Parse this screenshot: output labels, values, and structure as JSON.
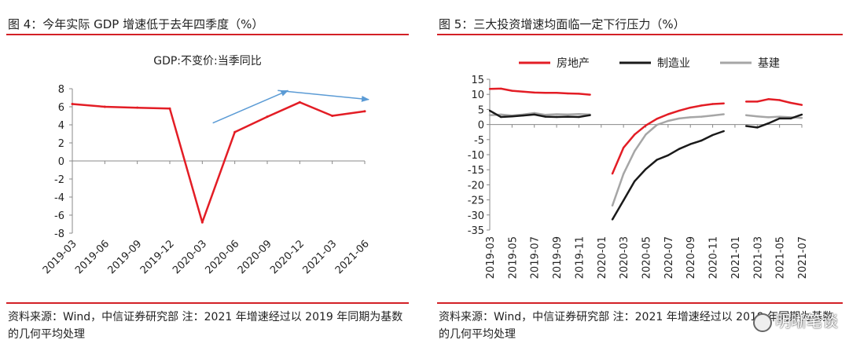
{
  "left": {
    "title": "图 4：今年实际 GDP 增速低于去年四季度（%）",
    "source": "资料来源：Wind，中信证券研究部 注：2021 年增速经过以 2019 年同期为基数的几何平均处理"
  },
  "right": {
    "title": "图 5：三大投资增速均面临一定下行压力（%）",
    "source": "资料来源：Wind，中信证券研究部 注：2021 年增速经过以 2019 年同期为基数的几何平均处理",
    "watermark": "明晰笔谈"
  },
  "colors": {
    "red": "#e31d25",
    "black": "#1a1a1a",
    "gray": "#a6a6a6",
    "arrow": "#5b9bd5",
    "rule": "#d32026"
  },
  "chart_data": [
    {
      "type": "line",
      "title": "GDP:不变价:当季同比",
      "x": [
        "2019-03",
        "2019-06",
        "2019-09",
        "2019-12",
        "2020-03",
        "2020-06",
        "2020-09",
        "2020-12",
        "2021-03",
        "2021-06"
      ],
      "series": [
        {
          "name": "GDP:不变价:当季同比",
          "color": "#e31d25",
          "values": [
            6.3,
            6.0,
            5.9,
            5.8,
            -6.8,
            3.2,
            4.9,
            6.5,
            5.0,
            5.5
          ]
        }
      ],
      "ylim": [
        -8,
        8
      ],
      "yticks": [
        8,
        6,
        4,
        2,
        0,
        -2,
        -4,
        -6,
        -8
      ],
      "grid": false,
      "annotations": [
        {
          "type": "arrow",
          "from": {
            "x": "2020-06",
            "y": 4.2
          },
          "to": {
            "x": "2020-12",
            "y": 7.8
          }
        },
        {
          "type": "arrow",
          "from": {
            "x": "2020-12",
            "y": 7.8
          },
          "to": {
            "x": "2021-06",
            "y": 6.8
          }
        }
      ]
    },
    {
      "type": "line",
      "x": [
        "2019-03",
        "2019-04",
        "2019-05",
        "2019-06",
        "2019-07",
        "2019-08",
        "2019-09",
        "2019-10",
        "2019-11",
        "2019-12",
        "2020-01",
        "2020-02",
        "2020-03",
        "2020-04",
        "2020-05",
        "2020-06",
        "2020-07",
        "2020-08",
        "2020-09",
        "2020-10",
        "2020-11",
        "2020-12",
        "2021-01",
        "2021-02",
        "2021-03",
        "2021-04",
        "2021-05",
        "2021-06",
        "2021-07"
      ],
      "xticks": [
        "2019-03",
        "2019-05",
        "2019-07",
        "2019-09",
        "2019-11",
        "2020-01",
        "2020-03",
        "2020-05",
        "2020-07",
        "2020-09",
        "2020-11",
        "2021-01",
        "2021-03",
        "2021-05",
        "2021-07"
      ],
      "series": [
        {
          "name": "房地产",
          "color": "#e31d25",
          "values": [
            11.8,
            11.9,
            11.2,
            10.9,
            10.6,
            10.5,
            10.5,
            10.3,
            10.2,
            9.9,
            null,
            -16.3,
            -7.7,
            -3.3,
            -0.3,
            1.9,
            3.4,
            4.6,
            5.6,
            6.3,
            6.8,
            7.0,
            null,
            7.6,
            7.6,
            8.4,
            8.1,
            7.2,
            6.5
          ]
        },
        {
          "name": "制造业",
          "color": "#1a1a1a",
          "values": [
            4.6,
            2.5,
            2.7,
            3.0,
            3.3,
            2.6,
            2.5,
            2.6,
            2.5,
            3.1,
            null,
            -31.5,
            -25.2,
            -18.8,
            -14.8,
            -11.7,
            -10.2,
            -8.1,
            -6.5,
            -5.3,
            -3.5,
            -2.2,
            null,
            -0.5,
            -1.0,
            0.4,
            2.0,
            2.0,
            3.3
          ]
        },
        {
          "name": "基建",
          "color": "#a6a6a6",
          "values": [
            3.1,
            3.3,
            3.0,
            3.3,
            3.8,
            3.2,
            3.4,
            3.3,
            3.5,
            3.3,
            null,
            -26.9,
            -16.4,
            -8.8,
            -3.3,
            -0.1,
            1.2,
            2.0,
            2.4,
            2.6,
            3.0,
            3.4,
            null,
            3.1,
            2.7,
            2.4,
            2.6,
            2.4,
            2.2
          ]
        }
      ],
      "ylim": [
        -35,
        15
      ],
      "yticks": [
        15,
        10,
        5,
        0,
        -5,
        -10,
        -15,
        -20,
        -25,
        -30,
        -35
      ],
      "legend": "top",
      "grid": false
    }
  ]
}
